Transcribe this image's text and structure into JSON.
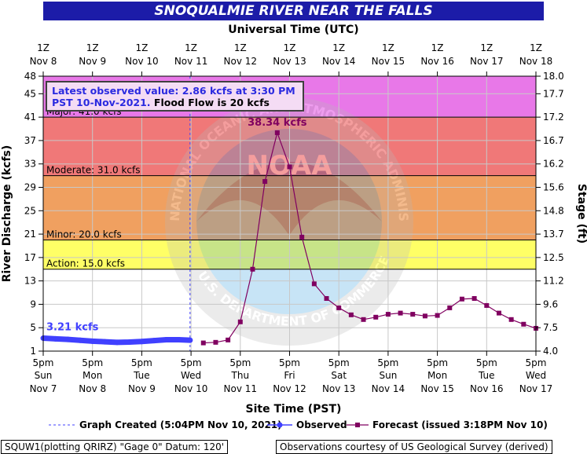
{
  "title": "SNOQUALMIE RIVER NEAR THE FALLS",
  "utc_title": "Universal Time (UTC)",
  "site_title": "Site Time (PST)",
  "left_axis_label": "River Discharge (kcfs)",
  "right_axis_label": "Stage (ft)",
  "info_box": {
    "line1": "Latest observed value: 2.86 kcfs at 3:30 PM",
    "line2a": "PST 10-Nov-2021.",
    "line2b": " Flood Flow is 20 kcfs"
  },
  "footer_left": "SQUW1(plotting QRIRZ) \"Gage 0\" Datum: 120'",
  "footer_right": "Observations courtesy of US Geological Survey (derived)",
  "legend": {
    "created": "Graph Created (5:04PM Nov 10, 2021)",
    "observed": "Observed",
    "forecast": "Forecast (issued 3:18PM Nov 10)"
  },
  "watermark": {
    "ring": "NATIONAL OCEANIC AND ATMOSPHERIC ADMINISTRATION",
    "ring_bottom": "U.S. DEPARTMENT OF COMMERCE",
    "center": "NOAA"
  },
  "colors": {
    "major": "#e878e8",
    "flood": "#f07878",
    "moderate": "#f0a060",
    "minor": "#ffff66",
    "observed": "#4040ff",
    "forecast": "#800060",
    "title_bg": "#1c1ca8"
  },
  "chart_data": {
    "type": "line",
    "x_unit": "days",
    "xlim": [
      0,
      10
    ],
    "ylim": [
      1,
      48
    ],
    "yticks": [
      1,
      5,
      9,
      13,
      17,
      21,
      25,
      29,
      33,
      37,
      41,
      45,
      48
    ],
    "stage_ticks": [
      {
        "q": 1,
        "label": "4.0"
      },
      {
        "q": 5,
        "label": "7.5"
      },
      {
        "q": 9,
        "label": "9.6"
      },
      {
        "q": 13,
        "label": "11.2"
      },
      {
        "q": 17,
        "label": "12.5"
      },
      {
        "q": 21,
        "label": "13.7"
      },
      {
        "q": 25,
        "label": "14.8"
      },
      {
        "q": 29,
        "label": "15.6"
      },
      {
        "q": 33,
        "label": "16.2"
      },
      {
        "q": 37,
        "label": "16.7"
      },
      {
        "q": 41,
        "label": "17.2"
      },
      {
        "q": 45,
        "label": "17.7"
      },
      {
        "q": 48,
        "label": "18.0"
      }
    ],
    "utc_ticks": [
      {
        "x": 0,
        "l1": "1Z",
        "l2": "Nov 8"
      },
      {
        "x": 1,
        "l1": "1Z",
        "l2": "Nov 9"
      },
      {
        "x": 2,
        "l1": "1Z",
        "l2": "Nov 10"
      },
      {
        "x": 3,
        "l1": "1Z",
        "l2": "Nov 11"
      },
      {
        "x": 4,
        "l1": "1Z",
        "l2": "Nov 12"
      },
      {
        "x": 5,
        "l1": "1Z",
        "l2": "Nov 13"
      },
      {
        "x": 6,
        "l1": "1Z",
        "l2": "Nov 14"
      },
      {
        "x": 7,
        "l1": "1Z",
        "l2": "Nov 15"
      },
      {
        "x": 8,
        "l1": "1Z",
        "l2": "Nov 16"
      },
      {
        "x": 9,
        "l1": "1Z",
        "l2": "Nov 17"
      },
      {
        "x": 10,
        "l1": "1Z",
        "l2": "Nov 18"
      }
    ],
    "site_ticks": [
      {
        "x": 0,
        "l1": "5pm",
        "l2": "Sun",
        "l3": "Nov 7"
      },
      {
        "x": 1,
        "l1": "5pm",
        "l2": "Mon",
        "l3": "Nov 8"
      },
      {
        "x": 2,
        "l1": "5pm",
        "l2": "Tue",
        "l3": "Nov 9"
      },
      {
        "x": 3,
        "l1": "5pm",
        "l2": "Wed",
        "l3": "Nov 10"
      },
      {
        "x": 4,
        "l1": "5pm",
        "l2": "Thu",
        "l3": "Nov 11"
      },
      {
        "x": 5,
        "l1": "5pm",
        "l2": "Fri",
        "l3": "Nov 12"
      },
      {
        "x": 6,
        "l1": "5pm",
        "l2": "Sat",
        "l3": "Nov 13"
      },
      {
        "x": 7,
        "l1": "5pm",
        "l2": "Sun",
        "l3": "Nov 14"
      },
      {
        "x": 8,
        "l1": "5pm",
        "l2": "Mon",
        "l3": "Nov 15"
      },
      {
        "x": 9,
        "l1": "5pm",
        "l2": "Tue",
        "l3": "Nov 16"
      },
      {
        "x": 10,
        "l1": "5pm",
        "l2": "Wed",
        "l3": "Nov 17"
      }
    ],
    "flood_categories": [
      {
        "name": "major",
        "label": "Major: 41.0 kcfs",
        "from": 41,
        "to": 48,
        "color": "#e878e8"
      },
      {
        "name": "flood",
        "label": "",
        "from": 31,
        "to": 41,
        "color": "#f07878"
      },
      {
        "name": "moderate",
        "label": "Moderate: 31.0 kcfs",
        "from": 20,
        "to": 31,
        "color": "#f0a060"
      },
      {
        "name": "minor",
        "label": "Minor: 20.0 kcfs",
        "from": 15,
        "to": 20,
        "color": "#ffff66"
      },
      {
        "name": "action",
        "label": "Action: 15.0 kcfs",
        "from": 15,
        "to": 15,
        "color": "#000000"
      }
    ],
    "graph_created_x": 2.98,
    "observed": {
      "name": "Observed",
      "label": "3.21 kcfs",
      "x": [
        0,
        0.25,
        0.5,
        0.75,
        1,
        1.25,
        1.5,
        1.75,
        2,
        2.25,
        2.5,
        2.75,
        2.98
      ],
      "y": [
        3.21,
        3.1,
        3.0,
        2.85,
        2.7,
        2.6,
        2.5,
        2.55,
        2.65,
        2.8,
        2.95,
        2.95,
        2.86
      ]
    },
    "forecast": {
      "name": "Forecast",
      "peak_label": "38.34 kcfs",
      "x": [
        3.25,
        3.5,
        3.75,
        4.0,
        4.25,
        4.5,
        4.75,
        5.0,
        5.25,
        5.5,
        5.75,
        6.0,
        6.25,
        6.5,
        6.75,
        7.0,
        7.25,
        7.5,
        7.75,
        8.0,
        8.25,
        8.5,
        8.75,
        9.0,
        9.25,
        9.5,
        9.75,
        10.0
      ],
      "y": [
        2.4,
        2.5,
        2.9,
        6.0,
        15.0,
        30.0,
        38.34,
        32.5,
        20.5,
        12.5,
        10.0,
        8.4,
        7.2,
        6.4,
        6.8,
        7.3,
        7.5,
        7.3,
        7.0,
        7.1,
        8.4,
        9.9,
        10.0,
        8.8,
        7.5,
        6.4,
        5.6,
        4.9
      ]
    }
  }
}
